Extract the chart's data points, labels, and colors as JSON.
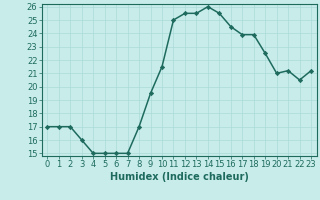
{
  "x": [
    0,
    1,
    2,
    3,
    4,
    5,
    6,
    7,
    8,
    9,
    10,
    11,
    12,
    13,
    14,
    15,
    16,
    17,
    18,
    19,
    20,
    21,
    22,
    23
  ],
  "y": [
    17,
    17,
    17,
    16,
    15,
    15,
    15,
    15,
    17,
    19.5,
    21.5,
    25,
    25.5,
    25.5,
    26,
    25.5,
    24.5,
    23.9,
    23.9,
    22.5,
    21,
    21.2,
    20.5,
    21.2
  ],
  "line_color": "#1e6b5e",
  "marker": "D",
  "marker_size": 2.2,
  "bg_color": "#c8ecea",
  "grid_color": "#aadad6",
  "xlabel": "Humidex (Indice chaleur)",
  "ylim": [
    15,
    26
  ],
  "xlim": [
    -0.5,
    23.5
  ],
  "yticks": [
    15,
    16,
    17,
    18,
    19,
    20,
    21,
    22,
    23,
    24,
    25,
    26
  ],
  "xticks": [
    0,
    1,
    2,
    3,
    4,
    5,
    6,
    7,
    8,
    9,
    10,
    11,
    12,
    13,
    14,
    15,
    16,
    17,
    18,
    19,
    20,
    21,
    22,
    23
  ],
  "xlabel_fontsize": 7,
  "tick_fontsize": 6,
  "linewidth": 1.1
}
